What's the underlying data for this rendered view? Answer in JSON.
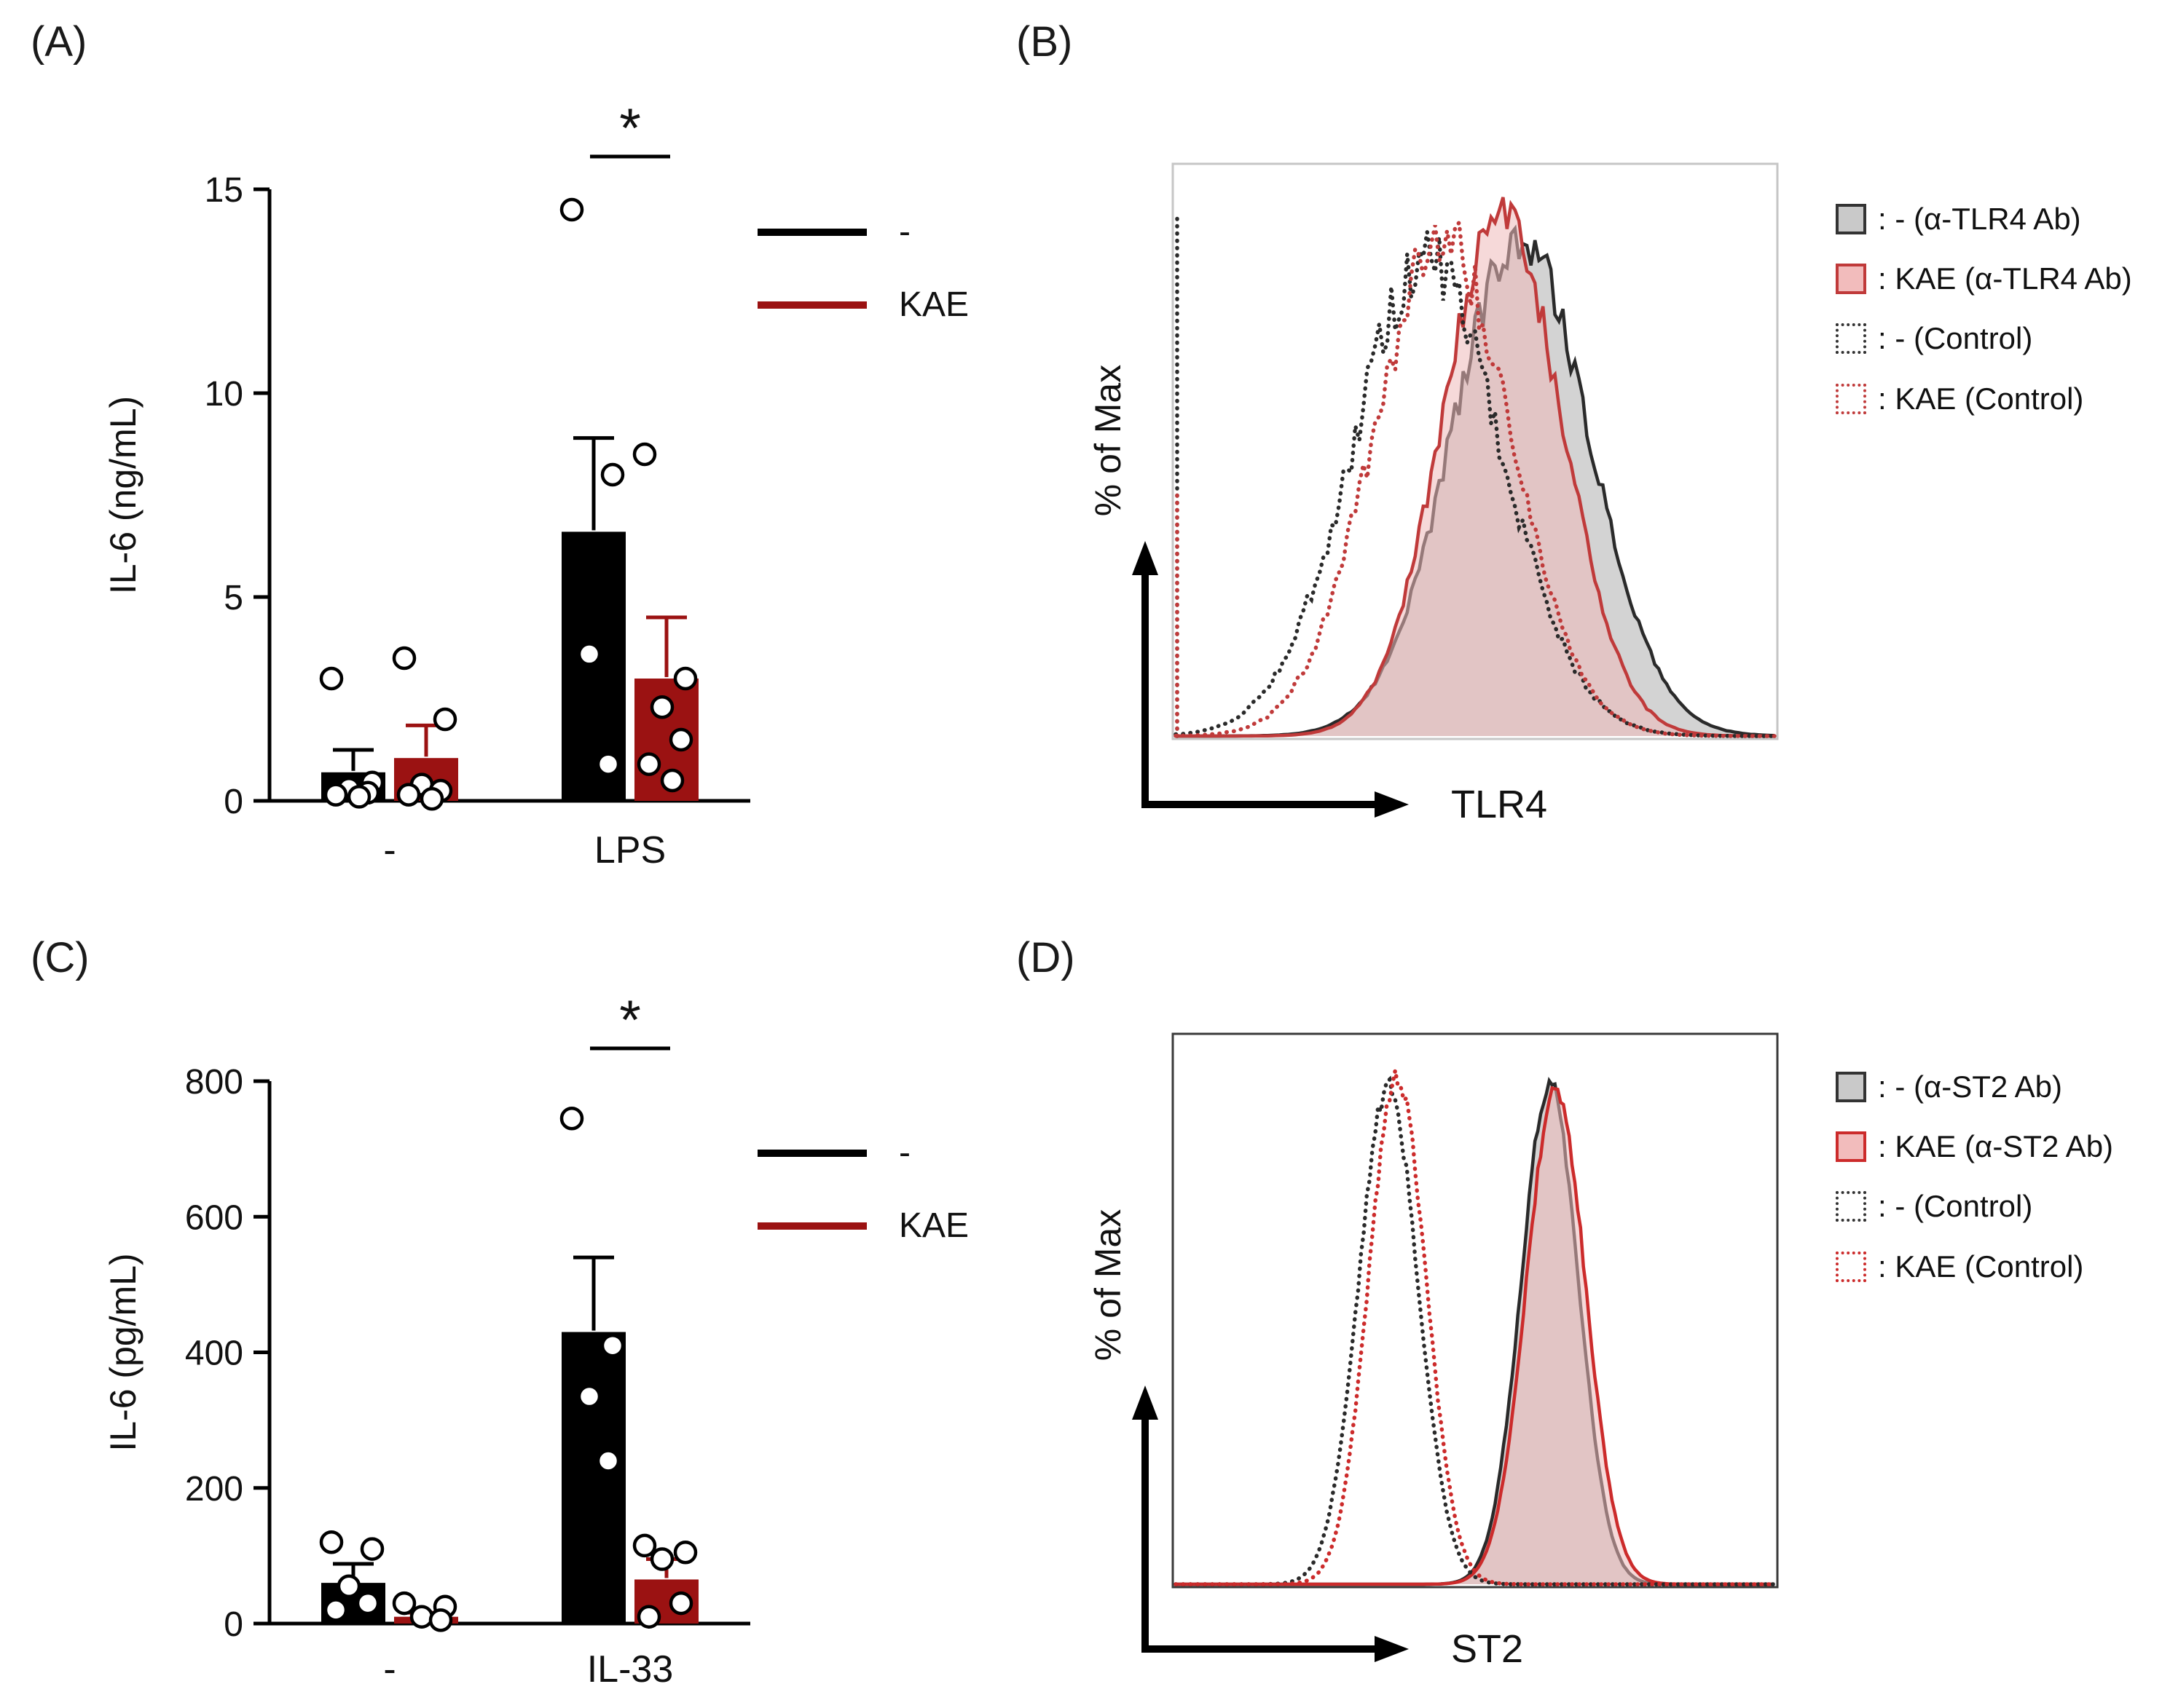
{
  "panels": {
    "a": "(A)",
    "b": "(B)",
    "c": "(C)",
    "d": "(D)"
  },
  "colors": {
    "series_black": "#000000",
    "series_kae_red": "#9B1212",
    "hist_red": "#C03A3A",
    "hist_gray_fill": "#b5b5b5",
    "hist_pink_fill": "#efb9b9"
  },
  "chart_data": [
    {
      "type": "bar",
      "panel": "A",
      "title": "",
      "xlabel": "",
      "ylabel": "IL-6 (ng/mL)",
      "categories": [
        "-",
        "LPS"
      ],
      "ylim": [
        0,
        15
      ],
      "yticks": [
        0,
        5,
        10,
        15
      ],
      "series": [
        {
          "name": "-",
          "color": "#000000",
          "values": [
            0.7,
            6.6
          ],
          "sem": [
            0.55,
            2.3
          ],
          "points": [
            [
              3.0,
              0.45,
              0.3,
              0.2,
              0.15,
              0.1
            ],
            [
              14.5,
              8.0,
              3.6,
              0.9
            ]
          ]
        },
        {
          "name": "KAE",
          "color": "#9B1212",
          "values": [
            1.05,
            3.0
          ],
          "sem": [
            0.8,
            1.5
          ],
          "points": [
            [
              3.5,
              2.0,
              0.4,
              0.25,
              0.15,
              0.05
            ],
            [
              8.5,
              3.0,
              2.3,
              1.5,
              0.9,
              0.5
            ]
          ]
        }
      ],
      "significance": {
        "category": "LPS",
        "label": "*"
      },
      "legend": [
        {
          "label": "-",
          "color": "#000000"
        },
        {
          "label": "KAE",
          "color": "#9B1212"
        }
      ]
    },
    {
      "type": "histogram",
      "panel": "B",
      "xlabel": "TLR4",
      "ylabel": "% of Max",
      "samples": 150,
      "series": [
        {
          "name": "- (α-TLR4 Ab)",
          "color": "#2a2a2a",
          "style": "solid",
          "fill": "#b5b5b5",
          "fill_opacity": 0.6,
          "peaks": [
            {
              "center": 0.575,
              "height": 0.92,
              "width": 0.115
            }
          ],
          "noise": 0.05
        },
        {
          "name": "KAE (α-TLR4 Ab)",
          "color": "#C03A3A",
          "style": "solid",
          "fill": "#efb9b9",
          "fill_opacity": 0.55,
          "peaks": [
            {
              "center": 0.545,
              "height": 0.97,
              "width": 0.1
            }
          ],
          "noise": 0.05
        },
        {
          "name": "- (Control)",
          "color": "#2a2a2a",
          "style": "dotted",
          "peaks": [
            {
              "center": 0.42,
              "height": 0.88,
              "width": 0.125
            }
          ],
          "noise": 0.07,
          "left_spike": 0.97
        },
        {
          "name": "KAE (Control)",
          "color": "#C03A3A",
          "style": "dotted",
          "peaks": [
            {
              "center": 0.445,
              "height": 0.92,
              "width": 0.115
            }
          ],
          "noise": 0.07,
          "left_spike": 0.45
        }
      ],
      "legend": [
        {
          "label": ": - (α-TLR4 Ab)",
          "fill": "#c9c9c9",
          "border": "#333333",
          "border_style": "solid"
        },
        {
          "label": ": KAE (α-TLR4 Ab)",
          "fill": "#f2bcbc",
          "border": "#C03A3A",
          "border_style": "solid"
        },
        {
          "label": ": - (Control)",
          "fill": "#ffffff",
          "border": "#333333",
          "border_style": "dotted"
        },
        {
          "label": ": KAE (Control)",
          "fill": "#ffffff",
          "border": "#C03A3A",
          "border_style": "dotted"
        }
      ]
    },
    {
      "type": "bar",
      "panel": "C",
      "title": "",
      "xlabel": "",
      "ylabel": "IL-6 (pg/mL)",
      "categories": [
        "-",
        "IL-33"
      ],
      "ylim": [
        0,
        800
      ],
      "yticks": [
        0,
        200,
        400,
        600,
        800
      ],
      "series": [
        {
          "name": "-",
          "color": "#000000",
          "values": [
            60,
            430
          ],
          "sem": [
            28,
            110
          ],
          "points": [
            [
              120,
              110,
              55,
              30,
              20
            ],
            [
              745,
              410,
              335,
              240
            ]
          ]
        },
        {
          "name": "KAE",
          "color": "#9B1212",
          "values": [
            10,
            65
          ],
          "sem": [
            6,
            30
          ],
          "points": [
            [
              30,
              25,
              10,
              5
            ],
            [
              115,
              105,
              95,
              30,
              10
            ]
          ]
        }
      ],
      "significance": {
        "category": "IL-33",
        "label": "*"
      },
      "legend": [
        {
          "label": "-",
          "color": "#000000"
        },
        {
          "label": "KAE",
          "color": "#9B1212"
        }
      ]
    },
    {
      "type": "histogram",
      "panel": "D",
      "xlabel": "ST2",
      "ylabel": "% of Max",
      "samples": 210,
      "series": [
        {
          "name": "- (α-ST2 Ab)",
          "color": "#2a2a2a",
          "style": "solid",
          "fill": "#b5b5b5",
          "fill_opacity": 0.6,
          "peaks": [
            {
              "center": 0.625,
              "height": 0.97,
              "width": 0.048
            }
          ],
          "noise": 0.02
        },
        {
          "name": "KAE (α-ST2 Ab)",
          "color": "#CC2B2B",
          "style": "solid",
          "fill": "#efb9b9",
          "fill_opacity": 0.55,
          "peaks": [
            {
              "center": 0.635,
              "height": 0.95,
              "width": 0.05
            }
          ],
          "noise": 0.02
        },
        {
          "name": "- (Control)",
          "color": "#2a2a2a",
          "style": "dotted",
          "peaks": [
            {
              "center": 0.355,
              "height": 0.96,
              "width": 0.05
            }
          ],
          "noise": 0.02
        },
        {
          "name": "KAE (Control)",
          "color": "#CC2B2B",
          "style": "dotted",
          "peaks": [
            {
              "center": 0.37,
              "height": 0.98,
              "width": 0.048
            }
          ],
          "noise": 0.02
        }
      ],
      "legend": [
        {
          "label": ": - (α-ST2 Ab)",
          "fill": "#c9c9c9",
          "border": "#333333",
          "border_style": "solid"
        },
        {
          "label": ": KAE (α-ST2 Ab)",
          "fill": "#f2bcbc",
          "border": "#CC2B2B",
          "border_style": "solid"
        },
        {
          "label": ": - (Control)",
          "fill": "#ffffff",
          "border": "#333333",
          "border_style": "dotted"
        },
        {
          "label": ": KAE (Control)",
          "fill": "#ffffff",
          "border": "#CC2B2B",
          "border_style": "dotted"
        }
      ]
    }
  ]
}
